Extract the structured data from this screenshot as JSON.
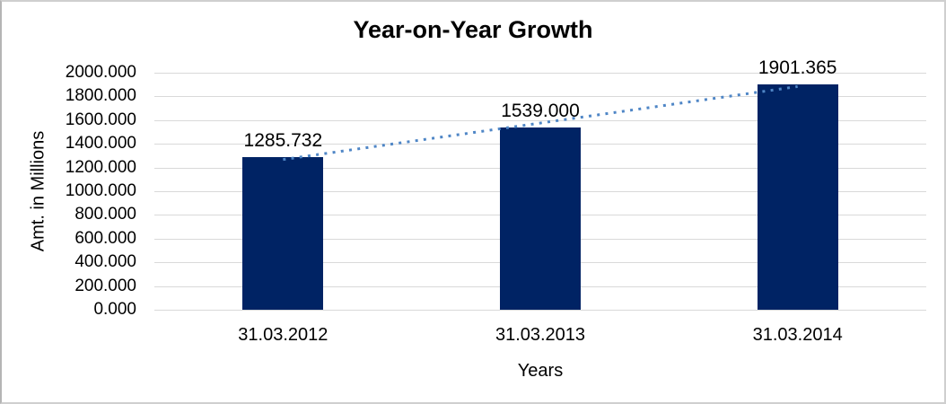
{
  "chart_data": {
    "type": "bar",
    "title": "Year-on-Year Growth",
    "categories": [
      "31.03.2012",
      "31.03.2013",
      "31.03.2014"
    ],
    "values": [
      1285.732,
      1539.0,
      1901.365
    ],
    "data_labels": [
      "1285.732",
      "1539.000",
      "1901.365"
    ],
    "xlabel": "Years",
    "ylabel": "Amt. in Millions",
    "ylim": [
      0,
      2000
    ],
    "ytick_step": 200,
    "ytick_labels": [
      "2000.000",
      "1800.000",
      "1600.000",
      "1400.000",
      "1200.000",
      "1000.000",
      "800.000",
      "600.000",
      "400.000",
      "200.000",
      "0.000"
    ],
    "grid": true,
    "legend": false,
    "trendline": {
      "type": "linear",
      "style": "dotted"
    },
    "colors": {
      "bar": "#002364",
      "trendline": "#4f86c6",
      "gridline": "#d9d9d9",
      "axis_line": "#d9d9d9",
      "background": "#ffffff",
      "border": "#cfcfcf",
      "text": "#000000"
    }
  }
}
